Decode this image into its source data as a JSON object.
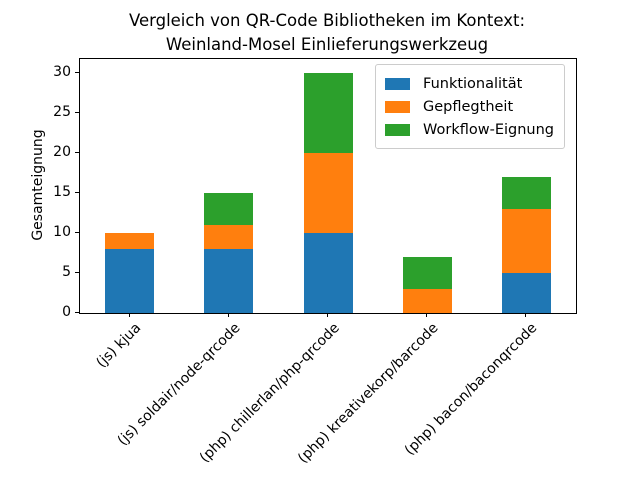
{
  "chart_data": {
    "type": "bar",
    "stacked": true,
    "title": "Vergleich von QR-Code Bibliotheken im Kontext:\nWeinland-Mosel Einlieferungswerkzeug",
    "title_lines": [
      "Vergleich von QR-Code Bibliotheken im Kontext:",
      "Weinland-Mosel Einlieferungswerkzeug"
    ],
    "xlabel": "",
    "ylabel": "Gesamteignung",
    "categories": [
      "(js) kjua",
      "(js) soldair/node-qrcode",
      "(php) chillerlan/php-qrcode",
      "(php) kreativekorp/barcode",
      "(php) bacon/baconqrcode"
    ],
    "series": [
      {
        "name": "Funktionalität",
        "color": "#1f77b4",
        "values": [
          8,
          8,
          10,
          0,
          5
        ]
      },
      {
        "name": "Gepflegtheit",
        "color": "#ff7f0e",
        "values": [
          2,
          3,
          10,
          3,
          8
        ]
      },
      {
        "name": "Workflow-Eignung",
        "color": "#2ca02c",
        "values": [
          0,
          4,
          10,
          4,
          4
        ]
      }
    ],
    "stack_totals": [
      10,
      15,
      30,
      7,
      17
    ],
    "yticks": [
      0,
      5,
      10,
      15,
      20,
      25,
      30
    ],
    "ylim": [
      0,
      31.75
    ],
    "grid": false,
    "legend_position": "upper right",
    "background_color": "#ffffff",
    "text_color": "#000000"
  }
}
